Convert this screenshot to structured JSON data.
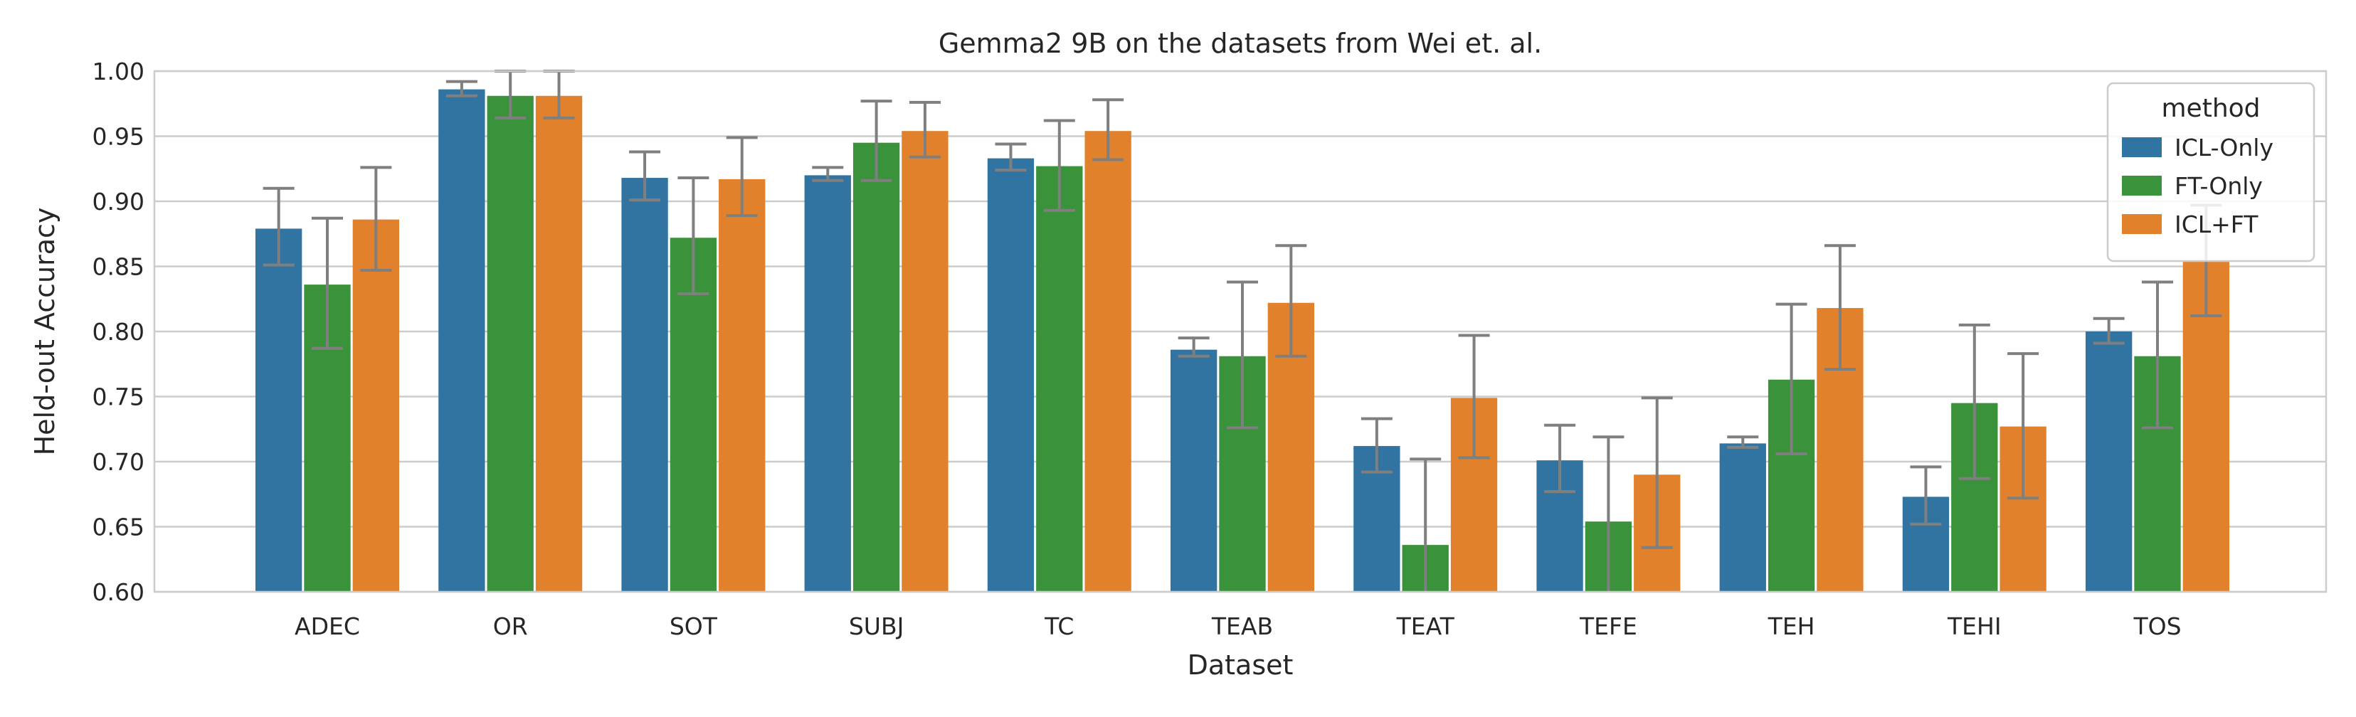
{
  "chart_data": {
    "type": "bar",
    "title": "Gemma2 9B on the datasets from Wei et. al.",
    "xlabel": "Dataset",
    "ylabel": "Held-out Accuracy",
    "ylim": [
      0.6,
      1.0
    ],
    "yticks": [
      "0.60",
      "0.65",
      "0.70",
      "0.75",
      "0.80",
      "0.85",
      "0.90",
      "0.95",
      "1.00"
    ],
    "grid": true,
    "legend": {
      "title": "method",
      "position": "top-right"
    },
    "categories": [
      "ADEC",
      "OR",
      "SOT",
      "SUBJ",
      "TC",
      "TEAB",
      "TEAT",
      "TEFE",
      "TEH",
      "TEHI",
      "TOS"
    ],
    "series": [
      {
        "name": "ICL-Only",
        "color": "#3274a1",
        "values": [
          0.879,
          0.986,
          0.918,
          0.92,
          0.933,
          0.786,
          0.712,
          0.701,
          0.714,
          0.673,
          0.8
        ],
        "err_low": [
          0.851,
          0.981,
          0.901,
          0.916,
          0.924,
          0.781,
          0.692,
          0.677,
          0.711,
          0.652,
          0.791
        ],
        "err_high": [
          0.91,
          0.992,
          0.938,
          0.926,
          0.944,
          0.795,
          0.733,
          0.728,
          0.719,
          0.696,
          0.81
        ]
      },
      {
        "name": "FT-Only",
        "color": "#3a923a",
        "values": [
          0.836,
          0.981,
          0.872,
          0.945,
          0.927,
          0.781,
          0.636,
          0.654,
          0.763,
          0.745,
          0.781
        ],
        "err_low": [
          0.787,
          0.964,
          0.829,
          0.916,
          0.893,
          0.726,
          0.6,
          0.6,
          0.706,
          0.687,
          0.726
        ],
        "err_high": [
          0.887,
          1.0,
          0.918,
          0.977,
          0.962,
          0.838,
          0.702,
          0.719,
          0.821,
          0.805,
          0.838
        ]
      },
      {
        "name": "ICL+FT",
        "color": "#e1812c",
        "values": [
          0.886,
          0.981,
          0.917,
          0.954,
          0.954,
          0.822,
          0.749,
          0.69,
          0.818,
          0.727,
          0.854
        ],
        "err_low": [
          0.847,
          0.964,
          0.889,
          0.934,
          0.932,
          0.781,
          0.703,
          0.634,
          0.771,
          0.672,
          0.812
        ],
        "err_high": [
          0.926,
          1.0,
          0.949,
          0.976,
          0.978,
          0.866,
          0.797,
          0.749,
          0.866,
          0.783,
          0.897
        ]
      }
    ]
  }
}
